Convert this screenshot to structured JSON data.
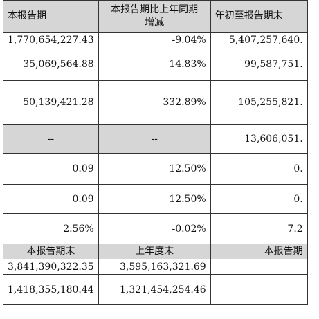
{
  "header": {
    "col1": "本报告期",
    "col2_line1": "本报告期比上年同期",
    "col2_line2": "增减",
    "col3": "年初至报告期末"
  },
  "rows": [
    {
      "a": "1,770,654,227.43",
      "b": "-9.04%",
      "c": "5,407,257,640."
    },
    {
      "a": "35,069,564.88",
      "b": "14.83%",
      "c": "99,587,751."
    },
    {
      "a": "50,139,421.28",
      "b": "332.89%",
      "c": "105,255,821."
    },
    {
      "a": "--",
      "b": "--",
      "c": "13,606,051."
    },
    {
      "a": "0.09",
      "b": "12.50%",
      "c": "0."
    },
    {
      "a": "0.09",
      "b": "12.50%",
      "c": "0."
    },
    {
      "a": "2.56%",
      "b": "-0.02%",
      "c": "7.2"
    }
  ],
  "header2": {
    "col1": "本报告期末",
    "col2": "上年度末",
    "col3": "本报告期"
  },
  "rows2": [
    {
      "a": "3,841,390,322.35",
      "b": "3,595,163,321.69",
      "c": ""
    },
    {
      "a": "1,418,355,180.44",
      "b": "1,321,454,254.46",
      "c": ""
    }
  ]
}
